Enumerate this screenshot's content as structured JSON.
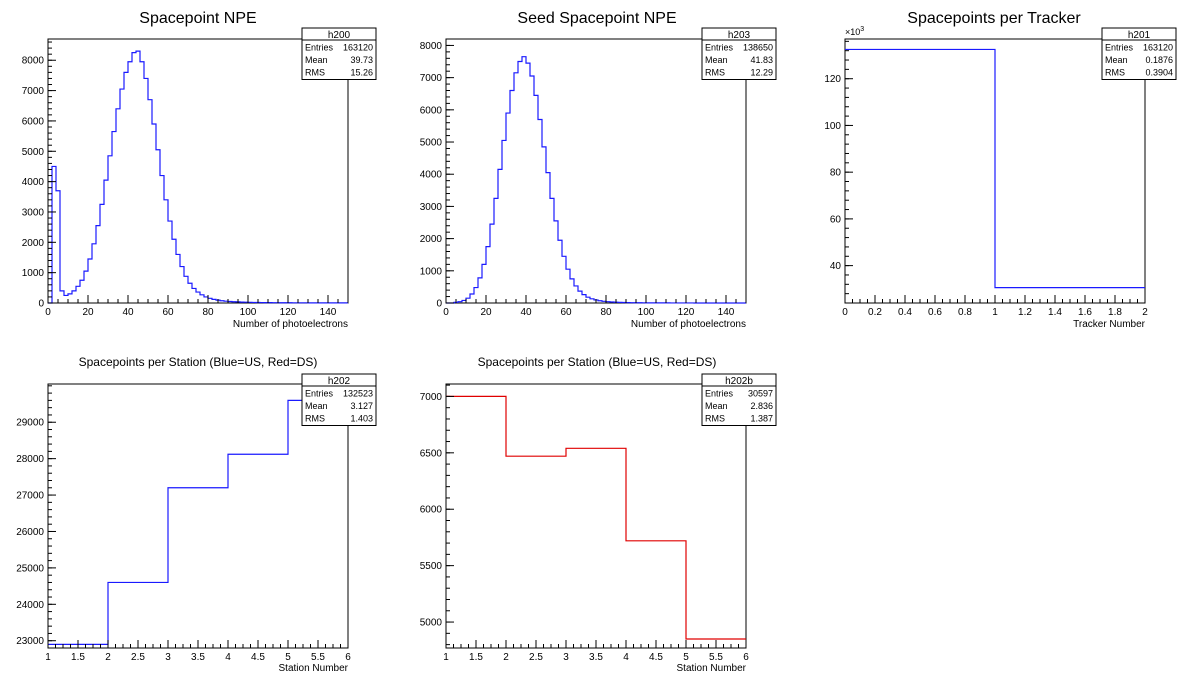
{
  "colors": {
    "blue": "#1a1aff",
    "red": "#e00000",
    "frame": "#000000"
  },
  "chart_data": [
    {
      "type": "histogram",
      "title": "Spacepoint NPE",
      "xlabel": "Number of photoelectrons",
      "ylabel": "",
      "xlim": [
        0,
        150
      ],
      "ylim": [
        0,
        8700
      ],
      "xticks": [
        0,
        20,
        40,
        60,
        80,
        100,
        120,
        140
      ],
      "yticks": [
        0,
        1000,
        2000,
        3000,
        4000,
        5000,
        6000,
        7000,
        8000
      ],
      "color": "blue",
      "stats": {
        "name": "h200",
        "rows": [
          [
            "Entries",
            "163120"
          ],
          [
            "Mean",
            "39.73"
          ],
          [
            "RMS",
            "15.26"
          ]
        ]
      },
      "bins": {
        "x0": 0,
        "width": 2,
        "values": [
          0,
          4500,
          3700,
          400,
          250,
          300,
          400,
          550,
          750,
          1050,
          1450,
          1950,
          2550,
          3250,
          4050,
          4850,
          5650,
          6400,
          7050,
          7600,
          7950,
          8250,
          8300,
          7950,
          7400,
          6700,
          5900,
          5050,
          4200,
          3400,
          2700,
          2100,
          1600,
          1200,
          880,
          650,
          480,
          360,
          270,
          200,
          155,
          120,
          95,
          75,
          60,
          50,
          42,
          36,
          30,
          26,
          22,
          19,
          17,
          15,
          13,
          12,
          11,
          10,
          9,
          8,
          8,
          7,
          7,
          6,
          6,
          5,
          5,
          5,
          4,
          4,
          4,
          3,
          3,
          3,
          3
        ]
      }
    },
    {
      "type": "histogram",
      "title": "Seed Spacepoint NPE",
      "xlabel": "Number of photoelectrons",
      "ylabel": "",
      "xlim": [
        0,
        150
      ],
      "ylim": [
        0,
        8200
      ],
      "xticks": [
        0,
        20,
        40,
        60,
        80,
        100,
        120,
        140
      ],
      "yticks": [
        0,
        1000,
        2000,
        3000,
        4000,
        5000,
        6000,
        7000,
        8000
      ],
      "color": "blue",
      "stats": {
        "name": "h203",
        "rows": [
          [
            "Entries",
            "138650"
          ],
          [
            "Mean",
            "41.83"
          ],
          [
            "RMS",
            "12.29"
          ]
        ]
      },
      "bins": {
        "x0": 0,
        "width": 2,
        "values": [
          0,
          0,
          20,
          40,
          80,
          150,
          280,
          480,
          780,
          1200,
          1750,
          2450,
          3250,
          4150,
          5050,
          5900,
          6600,
          7150,
          7500,
          7650,
          7450,
          7050,
          6450,
          5700,
          4850,
          4050,
          3250,
          2550,
          1950,
          1450,
          1050,
          750,
          530,
          370,
          260,
          180,
          130,
          95,
          70,
          52,
          40,
          31,
          24,
          19,
          15,
          12,
          10,
          8,
          7,
          6,
          5,
          4,
          4,
          3,
          3,
          3,
          2,
          2,
          2,
          2,
          2,
          2,
          1,
          1,
          1,
          1,
          1,
          1,
          1,
          1,
          1,
          1,
          1,
          1,
          1
        ]
      }
    },
    {
      "type": "histogram",
      "title": "Spacepoints per Tracker",
      "xlabel": "Tracker Number",
      "ylabel": "",
      "xlim": [
        0,
        2
      ],
      "ylim": [
        24000,
        137000
      ],
      "xticks": [
        0,
        0.2,
        0.4,
        0.6,
        0.8,
        1,
        1.2,
        1.4,
        1.6,
        1.8,
        2
      ],
      "xticklabels": [
        "0",
        "0.2",
        "0.4",
        "0.6",
        "0.8",
        "1",
        "1.2",
        "1.4",
        "1.6",
        "1.8",
        "2"
      ],
      "yticks": [
        40000,
        60000,
        80000,
        100000,
        120000
      ],
      "yticklabels": [
        "40",
        "60",
        "80",
        "100",
        "120"
      ],
      "yexponent": "×10",
      "yexponent_power": "3",
      "color": "blue",
      "stats": {
        "name": "h201",
        "rows": [
          [
            "Entries",
            "163120"
          ],
          [
            "Mean",
            "0.1876"
          ],
          [
            "RMS",
            "0.3904"
          ]
        ]
      },
      "bins": {
        "x0": 0,
        "width": 1,
        "values": [
          132523,
          30597
        ]
      }
    },
    {
      "type": "histogram",
      "title": "Spacepoints per Station (Blue=US, Red=DS)",
      "xlabel": "Station Number",
      "ylabel": "",
      "xlim": [
        1,
        6
      ],
      "ylim": [
        22800,
        30050
      ],
      "xticks": [
        1,
        1.5,
        2,
        2.5,
        3,
        3.5,
        4,
        4.5,
        5,
        5.5,
        6
      ],
      "xticklabels": [
        "1",
        "1.5",
        "2",
        "2.5",
        "3",
        "3.5",
        "4",
        "4.5",
        "5",
        "5.5",
        "6"
      ],
      "yticks": [
        23000,
        24000,
        25000,
        26000,
        27000,
        28000,
        29000
      ],
      "color": "blue",
      "stats": {
        "name": "h202",
        "rows": [
          [
            "Entries",
            "132523"
          ],
          [
            "Mean",
            "3.127"
          ],
          [
            "RMS",
            "1.403"
          ]
        ]
      },
      "bins": {
        "x0": 1,
        "width": 1,
        "values": [
          22900,
          24600,
          27200,
          28120,
          29600
        ]
      }
    },
    {
      "type": "histogram",
      "title": "Spacepoints per Station (Blue=US, Red=DS)",
      "xlabel": "Station Number",
      "ylabel": "",
      "xlim": [
        1,
        6
      ],
      "ylim": [
        4770,
        7110
      ],
      "xticks": [
        1,
        1.5,
        2,
        2.5,
        3,
        3.5,
        4,
        4.5,
        5,
        5.5,
        6
      ],
      "xticklabels": [
        "1",
        "1.5",
        "2",
        "2.5",
        "3",
        "3.5",
        "4",
        "4.5",
        "5",
        "5.5",
        "6"
      ],
      "yticks": [
        5000,
        5500,
        6000,
        6500,
        7000
      ],
      "color": "red",
      "stats": {
        "name": "h202b",
        "rows": [
          [
            "Entries",
            "30597"
          ],
          [
            "Mean",
            "2.836"
          ],
          [
            "RMS",
            "1.387"
          ]
        ]
      },
      "bins": {
        "x0": 1,
        "width": 1,
        "values": [
          7000,
          6470,
          6540,
          5720,
          4850
        ]
      }
    }
  ]
}
